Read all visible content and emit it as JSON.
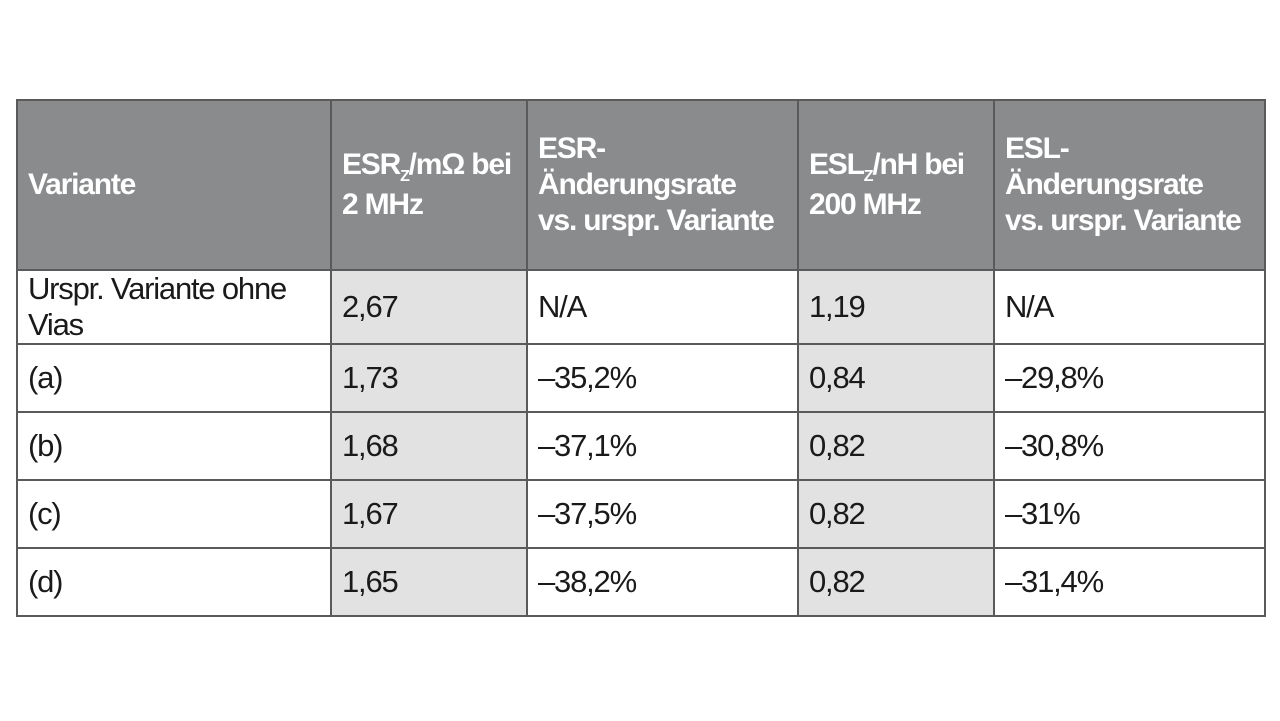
{
  "table": {
    "headers": [
      {
        "text": "Variante"
      },
      {
        "main": "ESR",
        "sub": "Z",
        "rest": "/mΩ bei",
        "line2": "2 MHz"
      },
      {
        "line1": "ESR-Änderungsrate",
        "line2": "vs. urspr. Variante"
      },
      {
        "main": "ESL",
        "sub": "Z",
        "rest": "/nH bei",
        "line2": "200 MHz"
      },
      {
        "line1": "ESL-Änderungsrate",
        "line2": "vs. urspr. Variante"
      }
    ],
    "rows": [
      [
        "Urspr. Variante ohne Vias",
        "2,67",
        "N/A",
        "1,19",
        "N/A"
      ],
      [
        "(a)",
        "1,73",
        "–35,2%",
        "0,84",
        "–29,8%"
      ],
      [
        "(b)",
        "1,68",
        "–37,1%",
        "0,82",
        "–30,8%"
      ],
      [
        "(c)",
        "1,67",
        "–37,5%",
        "0,82",
        "–31%"
      ],
      [
        "(d)",
        "1,65",
        "–38,2%",
        "0,82",
        "–31,4%"
      ]
    ]
  },
  "colors": {
    "header_bg": "#8a8b8d",
    "header_text": "#ffffff",
    "shaded_cell": "#e2e2e3",
    "border": "#5a5a5a"
  }
}
